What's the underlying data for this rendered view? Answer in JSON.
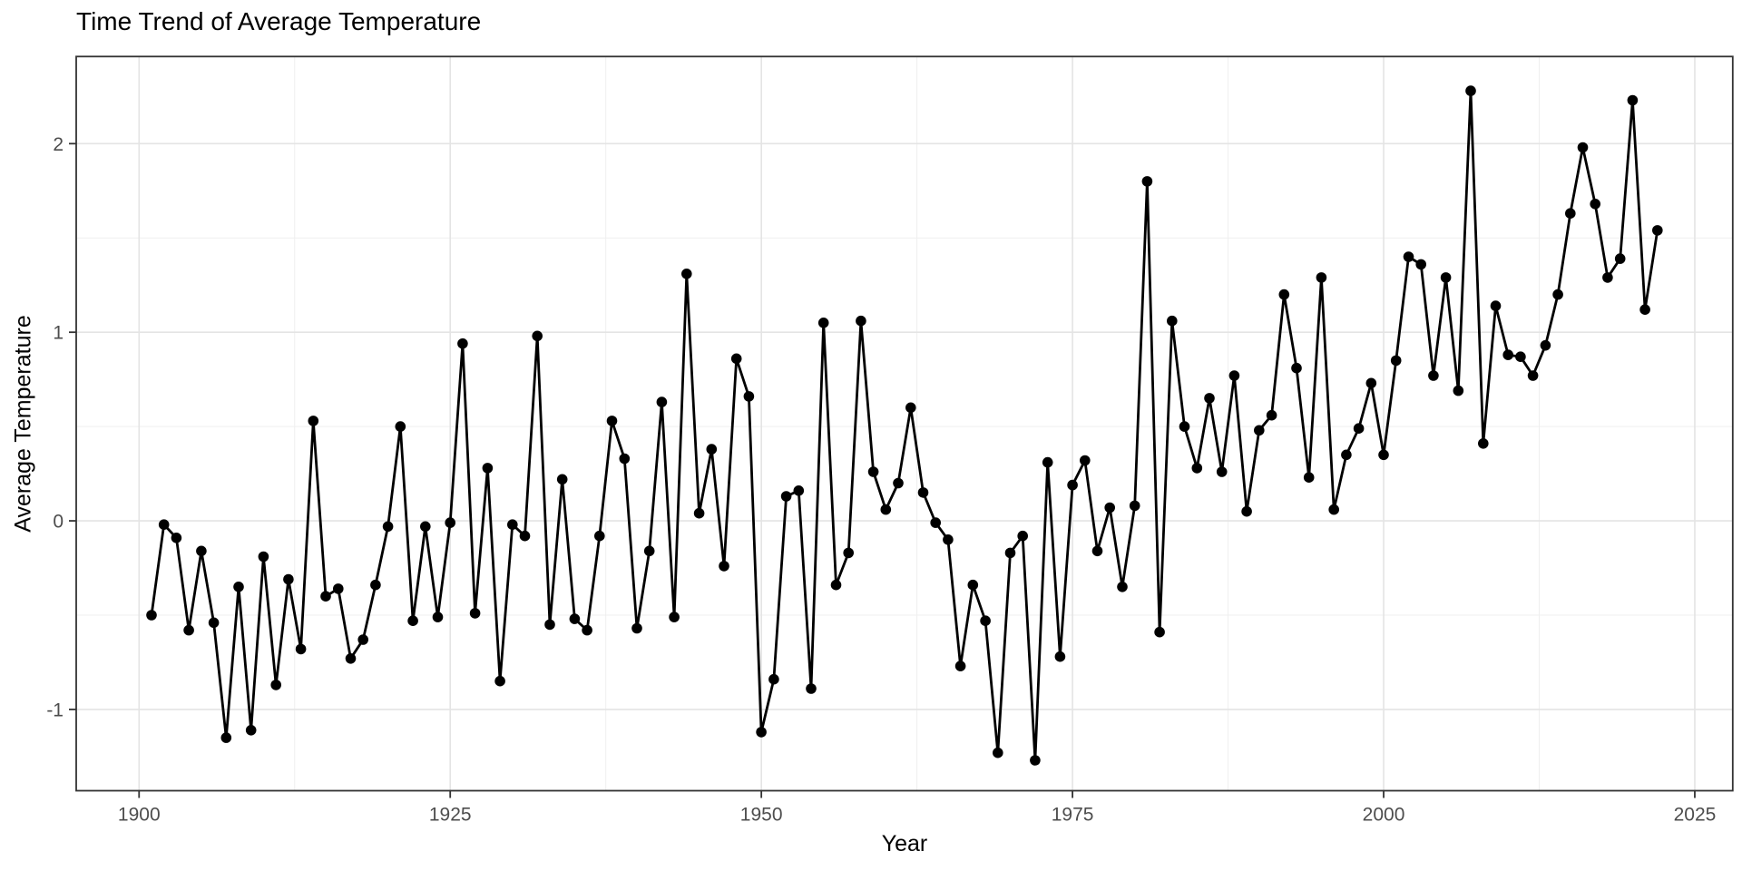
{
  "chart_data": {
    "type": "line",
    "title": "Time Trend of Average Temperature",
    "xlabel": "Year",
    "ylabel": "Average Temperature",
    "x_ticks": [
      1900,
      1925,
      1950,
      1975,
      2000,
      2025
    ],
    "y_ticks": [
      -1,
      0,
      1,
      2
    ],
    "xlim": [
      1894.95,
      2028.05
    ],
    "ylim": [
      -1.431,
      2.462
    ],
    "grid": "major and minor, light gray on white panel",
    "legend": "none",
    "marker": "filled black circles connected by black line",
    "series": [
      {
        "name": "Average Temperature",
        "x": [
          1901,
          1902,
          1903,
          1904,
          1905,
          1906,
          1907,
          1908,
          1909,
          1910,
          1911,
          1912,
          1913,
          1914,
          1915,
          1916,
          1917,
          1918,
          1919,
          1920,
          1921,
          1922,
          1923,
          1924,
          1925,
          1926,
          1927,
          1928,
          1929,
          1930,
          1931,
          1932,
          1933,
          1934,
          1935,
          1936,
          1937,
          1938,
          1939,
          1940,
          1941,
          1942,
          1943,
          1944,
          1945,
          1946,
          1947,
          1948,
          1949,
          1950,
          1951,
          1952,
          1953,
          1954,
          1955,
          1956,
          1957,
          1958,
          1959,
          1960,
          1961,
          1962,
          1963,
          1964,
          1965,
          1966,
          1967,
          1968,
          1969,
          1970,
          1971,
          1972,
          1973,
          1974,
          1975,
          1976,
          1977,
          1978,
          1979,
          1980,
          1981,
          1982,
          1983,
          1984,
          1985,
          1986,
          1987,
          1988,
          1989,
          1990,
          1991,
          1992,
          1993,
          1994,
          1995,
          1996,
          1997,
          1998,
          1999,
          2000,
          2001,
          2002,
          2003,
          2004,
          2005,
          2006,
          2007,
          2008,
          2009,
          2010,
          2011,
          2012,
          2013,
          2014,
          2015,
          2016,
          2017,
          2018,
          2019,
          2020,
          2021,
          2022
        ],
        "y": [
          -0.5,
          -0.02,
          -0.09,
          -0.58,
          -0.16,
          -0.54,
          -1.15,
          -0.35,
          -1.11,
          -0.19,
          -0.87,
          -0.31,
          -0.68,
          0.53,
          -0.4,
          -0.36,
          -0.73,
          -0.63,
          -0.34,
          -0.03,
          0.5,
          -0.53,
          -0.03,
          -0.51,
          -0.01,
          0.94,
          -0.49,
          0.28,
          -0.85,
          -0.02,
          -0.08,
          0.98,
          -0.55,
          0.22,
          -0.52,
          -0.58,
          -0.08,
          0.53,
          0.33,
          -0.57,
          -0.16,
          0.63,
          -0.51,
          1.31,
          0.04,
          0.38,
          -0.24,
          0.86,
          0.66,
          -1.12,
          -0.84,
          0.13,
          0.16,
          -0.89,
          1.05,
          -0.34,
          -0.17,
          1.06,
          0.26,
          0.06,
          0.2,
          0.6,
          0.15,
          -0.01,
          -0.1,
          -0.77,
          -0.34,
          -0.53,
          -1.23,
          -0.17,
          -0.08,
          -1.27,
          0.31,
          -0.72,
          0.19,
          0.32,
          -0.16,
          0.07,
          -0.35,
          0.08,
          1.8,
          -0.59,
          1.06,
          0.5,
          0.28,
          0.65,
          0.26,
          0.77,
          0.05,
          0.48,
          0.56,
          1.2,
          0.81,
          0.23,
          1.29,
          0.06,
          0.35,
          0.49,
          0.73,
          0.35,
          0.85,
          1.4,
          1.36,
          0.77,
          1.29,
          0.69,
          2.28,
          0.41,
          1.14,
          0.88,
          0.87,
          0.77,
          0.93,
          1.2,
          1.63,
          1.98,
          1.68,
          1.29,
          1.39,
          2.23,
          1.12,
          1.54
        ]
      }
    ],
    "colors": {
      "point": "#000000",
      "line": "#000000",
      "grid_major": "#E4E4E4",
      "grid_minor": "#EFEFEF",
      "panel_border": "#333333",
      "tick_mark": "#333333",
      "tick_text": "#4D4D4D",
      "title_text": "#000000",
      "panel_bg": "#FFFFFF"
    }
  }
}
